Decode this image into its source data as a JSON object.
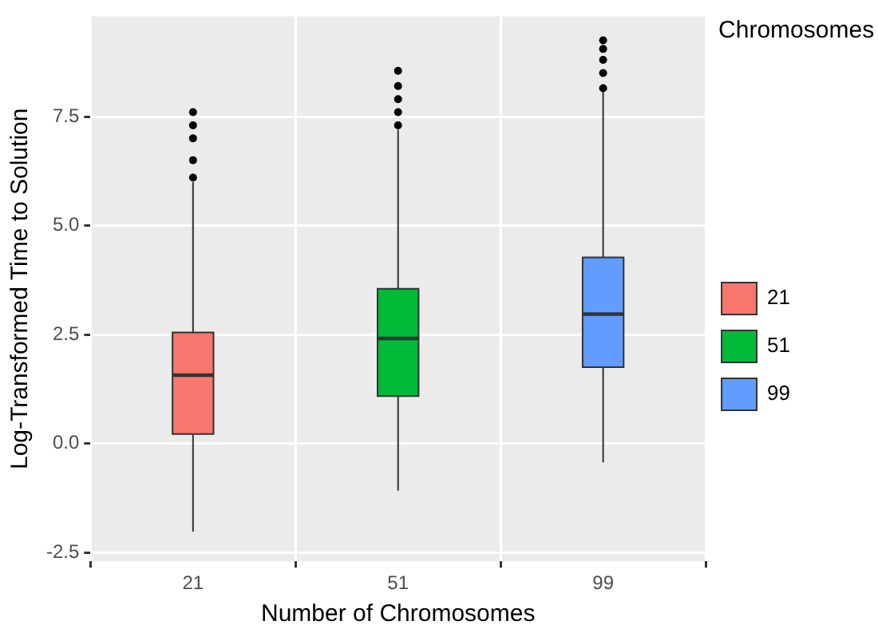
{
  "chart_data": {
    "type": "box",
    "xlabel": "Number of Chromosomes",
    "ylabel": "Log-Transformed Time to Solution",
    "legend_title": "Chromosomes",
    "legend": "right",
    "grid": true,
    "categories": [
      "21",
      "51",
      "99"
    ],
    "series": [
      {
        "name": "21",
        "color": "#f8766d",
        "boxes": [
          {
            "low": -2.02,
            "q1": 0.22,
            "median": 1.57,
            "q3": 2.55,
            "high": 6.0,
            "outliers": [
              6.1,
              6.5,
              7.0,
              7.3,
              7.6
            ]
          },
          null,
          null
        ]
      },
      {
        "name": "51",
        "color": "#00ba38",
        "boxes": [
          null,
          {
            "low": -1.08,
            "q1": 1.09,
            "median": 2.41,
            "q3": 3.55,
            "high": 7.2,
            "outliers": [
              7.3,
              7.6,
              7.9,
              8.2,
              8.55
            ]
          },
          null
        ]
      },
      {
        "name": "99",
        "color": "#619cff",
        "boxes": [
          null,
          null,
          {
            "low": -0.43,
            "q1": 1.75,
            "median": 2.97,
            "q3": 4.27,
            "high": 8.1,
            "outliers": [
              8.15,
              8.5,
              8.8,
              9.05,
              9.25
            ]
          }
        ]
      }
    ],
    "ylim": [
      -2.7,
      9.8
    ],
    "yticks": [
      {
        "value": -2.5,
        "label": "-2.5"
      },
      {
        "value": 0,
        "label": "0.0"
      },
      {
        "value": 2.5,
        "label": "2.5"
      },
      {
        "value": 5,
        "label": "5.0"
      },
      {
        "value": 7.5,
        "label": "7.5"
      }
    ]
  }
}
